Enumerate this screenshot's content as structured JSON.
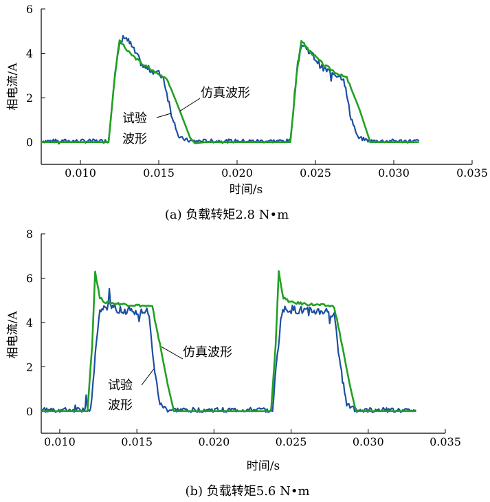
{
  "colors": {
    "sim": "#22a022",
    "exp": "#1c4fa0",
    "axis": "#000000"
  },
  "chart_data": [
    {
      "type": "line",
      "caption": "(a) 负载转矩2.8 N•m",
      "xlabel": "时间/s",
      "ylabel": "相电流/A",
      "xlim": [
        0.0075,
        0.035
      ],
      "ylim": [
        -1,
        6
      ],
      "xticks": [
        0.01,
        0.015,
        0.02,
        0.025,
        0.03,
        0.035
      ],
      "xtick_labels": [
        "0.010",
        "0.015",
        "0.020",
        "0.025",
        "0.030",
        "0.035"
      ],
      "yticks": [
        0,
        2,
        4,
        6
      ],
      "ytick_labels": [
        "0",
        "2",
        "4",
        "6"
      ],
      "grid": false,
      "annotations": [
        {
          "text": "仿真波形",
          "series": "sim"
        },
        {
          "text_lines": [
            "试验",
            "波形"
          ],
          "series": "exp"
        }
      ],
      "series": [
        {
          "key": "sim",
          "x": [
            0.0075,
            0.0118,
            0.0122,
            0.0125,
            0.013,
            0.014,
            0.015,
            0.0155,
            0.0163,
            0.017,
            0.0173,
            0.018,
            0.0234,
            0.0238,
            0.0241,
            0.0245,
            0.0255,
            0.0265,
            0.027,
            0.0278,
            0.0285,
            0.029,
            0.0316
          ],
          "y": [
            0,
            0,
            3.0,
            4.6,
            4.1,
            3.5,
            3.05,
            2.9,
            1.5,
            0.2,
            -0.05,
            0,
            0,
            3.0,
            4.6,
            4.2,
            3.5,
            3.05,
            2.9,
            1.5,
            0,
            0,
            0
          ]
        },
        {
          "key": "exp",
          "x": [
            0.0075,
            0.0118,
            0.0122,
            0.0125,
            0.0128,
            0.0132,
            0.014,
            0.015,
            0.0153,
            0.0158,
            0.0163,
            0.017,
            0.018,
            0.0234,
            0.0238,
            0.0241,
            0.0245,
            0.0255,
            0.0265,
            0.0268,
            0.0272,
            0.0277,
            0.0285,
            0.0316
          ],
          "y": [
            0.05,
            0.05,
            3.2,
            4.3,
            4.8,
            4.4,
            3.4,
            3.1,
            2.9,
            1.3,
            0.2,
            0.05,
            0.05,
            0.05,
            3.2,
            4.4,
            4.2,
            3.3,
            3.0,
            2.9,
            1.3,
            0.2,
            0.05,
            0.05
          ]
        }
      ]
    },
    {
      "type": "line",
      "caption": "(b) 负载转矩5.6 N•m",
      "xlabel": "时间/s",
      "ylabel": "相电流/A",
      "xlim": [
        0.0088,
        0.035
      ],
      "ylim": [
        -1,
        8
      ],
      "xticks": [
        0.01,
        0.015,
        0.02,
        0.025,
        0.03,
        0.035
      ],
      "xtick_labels": [
        "0.010",
        "0.015",
        "0.020",
        "0.025",
        "0.030",
        "0.035"
      ],
      "yticks": [
        0,
        2,
        4,
        6,
        8
      ],
      "ytick_labels": [
        "0",
        "2",
        "4",
        "6",
        "8"
      ],
      "grid": false,
      "annotations": [
        {
          "text": "仿真波形",
          "series": "sim"
        },
        {
          "text_lines": [
            "试验",
            "波形"
          ],
          "series": "exp"
        }
      ],
      "series": [
        {
          "key": "sim",
          "x": [
            0.0088,
            0.0118,
            0.0121,
            0.0123,
            0.0126,
            0.013,
            0.0145,
            0.0155,
            0.016,
            0.0165,
            0.017,
            0.0174,
            0.018,
            0.0237,
            0.024,
            0.0242,
            0.0245,
            0.025,
            0.0265,
            0.0275,
            0.0278,
            0.0283,
            0.0288,
            0.0292,
            0.0331
          ],
          "y": [
            0,
            0,
            3.0,
            6.3,
            5.1,
            4.9,
            4.8,
            4.75,
            4.7,
            3.0,
            1.2,
            0,
            0,
            0,
            3.0,
            6.3,
            5.1,
            4.9,
            4.8,
            4.75,
            4.7,
            3.0,
            1.2,
            0,
            0
          ]
        },
        {
          "key": "exp",
          "x": [
            0.0088,
            0.012,
            0.0123,
            0.0126,
            0.013,
            0.014,
            0.015,
            0.0155,
            0.0158,
            0.0161,
            0.0165,
            0.017,
            0.018,
            0.0238,
            0.0241,
            0.0244,
            0.0248,
            0.026,
            0.027,
            0.0275,
            0.0278,
            0.0282,
            0.0286,
            0.0292,
            0.0331
          ],
          "y": [
            0.05,
            0.05,
            2.5,
            4.5,
            4.7,
            4.6,
            4.5,
            4.5,
            4.4,
            2.0,
            0.3,
            0.05,
            0.05,
            0.05,
            2.5,
            4.5,
            4.6,
            4.5,
            4.5,
            4.5,
            4.4,
            2.0,
            0.3,
            0.05,
            0.05
          ]
        }
      ]
    }
  ]
}
